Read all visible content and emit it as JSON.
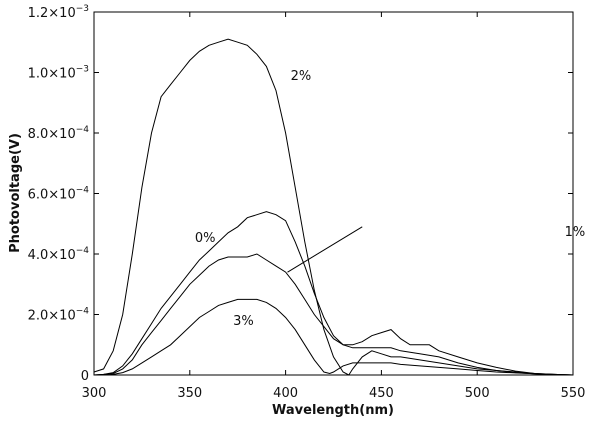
{
  "chart_data": {
    "type": "line",
    "title": "",
    "xlabel": "Wavelength(nm)",
    "ylabel": "Photovoltage(V)",
    "xlim": [
      300,
      550
    ],
    "ylim": [
      0,
      0.0012
    ],
    "grid": false,
    "legend": "none",
    "x_ticks": [
      300,
      350,
      400,
      450,
      500,
      550
    ],
    "x_tick_labels": [
      "300",
      "350",
      "400",
      "450",
      "500",
      "550"
    ],
    "y_ticks": [
      0,
      0.0002,
      0.0004,
      0.0006,
      0.0008,
      0.001,
      0.0012
    ],
    "y_tick_labels": [
      {
        "mant": "0",
        "exp": ""
      },
      {
        "mant": "2.0×10",
        "exp": "−4"
      },
      {
        "mant": "4.0×10",
        "exp": "−4"
      },
      {
        "mant": "6.0×10",
        "exp": "−4"
      },
      {
        "mant": "8.0×10",
        "exp": "−4"
      },
      {
        "mant": "1.0×10",
        "exp": "−3"
      },
      {
        "mant": "1.2×10",
        "exp": "−3"
      }
    ],
    "series": [
      {
        "name": "2%",
        "points": [
          [
            300,
            1e-05
          ],
          [
            305,
            2e-05
          ],
          [
            310,
            8e-05
          ],
          [
            315,
            0.0002
          ],
          [
            320,
            0.0004
          ],
          [
            325,
            0.00062
          ],
          [
            330,
            0.0008
          ],
          [
            335,
            0.00092
          ],
          [
            340,
            0.00096
          ],
          [
            345,
            0.001
          ],
          [
            350,
            0.00104
          ],
          [
            355,
            0.00107
          ],
          [
            360,
            0.00109
          ],
          [
            365,
            0.0011
          ],
          [
            370,
            0.00111
          ],
          [
            375,
            0.0011
          ],
          [
            380,
            0.00109
          ],
          [
            385,
            0.00106
          ],
          [
            390,
            0.00102
          ],
          [
            395,
            0.00094
          ],
          [
            400,
            0.0008
          ],
          [
            405,
            0.00062
          ],
          [
            410,
            0.00044
          ],
          [
            415,
            0.00028
          ],
          [
            420,
            0.00015
          ],
          [
            425,
            6e-05
          ],
          [
            430,
            1e-05
          ],
          [
            433,
            0.0
          ],
          [
            435,
            2e-05
          ],
          [
            440,
            6e-05
          ],
          [
            445,
            8e-05
          ],
          [
            450,
            7e-05
          ],
          [
            455,
            6e-05
          ],
          [
            460,
            6e-05
          ],
          [
            470,
            5e-05
          ],
          [
            480,
            4e-05
          ],
          [
            490,
            3e-05
          ],
          [
            500,
            2e-05
          ],
          [
            510,
            1.5e-05
          ],
          [
            520,
            1e-05
          ],
          [
            530,
            5e-06
          ],
          [
            540,
            2e-06
          ],
          [
            550,
            0.0
          ]
        ]
      },
      {
        "name": "0%",
        "points": [
          [
            300,
            0.0
          ],
          [
            305,
            2e-06
          ],
          [
            310,
            8e-06
          ],
          [
            315,
            3e-05
          ],
          [
            320,
            7e-05
          ],
          [
            325,
            0.00012
          ],
          [
            330,
            0.00017
          ],
          [
            335,
            0.00022
          ],
          [
            340,
            0.00026
          ],
          [
            345,
            0.0003
          ],
          [
            350,
            0.00034
          ],
          [
            355,
            0.00038
          ],
          [
            360,
            0.00041
          ],
          [
            365,
            0.00044
          ],
          [
            370,
            0.00047
          ],
          [
            375,
            0.00049
          ],
          [
            380,
            0.00052
          ],
          [
            385,
            0.00053
          ],
          [
            390,
            0.00054
          ],
          [
            395,
            0.00053
          ],
          [
            400,
            0.00051
          ],
          [
            405,
            0.00044
          ],
          [
            410,
            0.00036
          ],
          [
            415,
            0.00027
          ],
          [
            420,
            0.00019
          ],
          [
            425,
            0.00013
          ],
          [
            430,
            0.0001
          ],
          [
            435,
            9e-05
          ],
          [
            440,
            9e-05
          ],
          [
            445,
            9e-05
          ],
          [
            450,
            9e-05
          ],
          [
            455,
            9e-05
          ],
          [
            460,
            8e-05
          ],
          [
            470,
            7e-05
          ],
          [
            480,
            6e-05
          ],
          [
            490,
            4e-05
          ],
          [
            500,
            2.5e-05
          ],
          [
            510,
            1.5e-05
          ],
          [
            520,
            8e-06
          ],
          [
            530,
            4e-06
          ],
          [
            540,
            1e-06
          ],
          [
            550,
            0.0
          ]
        ]
      },
      {
        "name": "1%",
        "points": [
          [
            300,
            0.0
          ],
          [
            305,
            2e-06
          ],
          [
            310,
            5e-06
          ],
          [
            315,
            2e-05
          ],
          [
            320,
            5e-05
          ],
          [
            325,
            0.0001
          ],
          [
            330,
            0.00014
          ],
          [
            335,
            0.00018
          ],
          [
            340,
            0.00022
          ],
          [
            345,
            0.00026
          ],
          [
            350,
            0.0003
          ],
          [
            355,
            0.00033
          ],
          [
            360,
            0.00036
          ],
          [
            365,
            0.00038
          ],
          [
            370,
            0.00039
          ],
          [
            375,
            0.00039
          ],
          [
            380,
            0.00039
          ],
          [
            385,
            0.0004
          ],
          [
            390,
            0.00038
          ],
          [
            395,
            0.00036
          ],
          [
            400,
            0.00034
          ],
          [
            405,
            0.0003
          ],
          [
            410,
            0.00025
          ],
          [
            415,
            0.0002
          ],
          [
            420,
            0.00016
          ],
          [
            425,
            0.00012
          ],
          [
            430,
            0.0001
          ],
          [
            435,
            0.0001
          ],
          [
            440,
            0.00011
          ],
          [
            445,
            0.00013
          ],
          [
            450,
            0.00014
          ],
          [
            455,
            0.00015
          ],
          [
            460,
            0.00012
          ],
          [
            465,
            0.0001
          ],
          [
            470,
            0.0001
          ],
          [
            475,
            0.0001
          ],
          [
            480,
            8e-05
          ],
          [
            490,
            6e-05
          ],
          [
            500,
            4e-05
          ],
          [
            510,
            2.5e-05
          ],
          [
            520,
            1.3e-05
          ],
          [
            530,
            5e-06
          ],
          [
            540,
            2e-06
          ],
          [
            550,
            0.0
          ]
        ]
      },
      {
        "name": "3%",
        "points": [
          [
            300,
            0.0
          ],
          [
            305,
            0.0
          ],
          [
            310,
            2e-06
          ],
          [
            315,
            8e-06
          ],
          [
            320,
            2e-05
          ],
          [
            325,
            4e-05
          ],
          [
            330,
            6e-05
          ],
          [
            335,
            8e-05
          ],
          [
            340,
            0.0001
          ],
          [
            345,
            0.00013
          ],
          [
            350,
            0.00016
          ],
          [
            355,
            0.00019
          ],
          [
            360,
            0.00021
          ],
          [
            365,
            0.00023
          ],
          [
            370,
            0.00024
          ],
          [
            375,
            0.00025
          ],
          [
            380,
            0.00025
          ],
          [
            385,
            0.00025
          ],
          [
            390,
            0.00024
          ],
          [
            395,
            0.00022
          ],
          [
            400,
            0.00019
          ],
          [
            405,
            0.00015
          ],
          [
            410,
            0.0001
          ],
          [
            415,
            5e-05
          ],
          [
            420,
            1e-05
          ],
          [
            423,
            5e-06
          ],
          [
            425,
            1e-05
          ],
          [
            430,
            3e-05
          ],
          [
            435,
            4e-05
          ],
          [
            440,
            4e-05
          ],
          [
            445,
            4e-05
          ],
          [
            450,
            4e-05
          ],
          [
            455,
            4e-05
          ],
          [
            460,
            3.5e-05
          ],
          [
            470,
            3e-05
          ],
          [
            480,
            2.5e-05
          ],
          [
            490,
            2e-05
          ],
          [
            500,
            1.5e-05
          ],
          [
            510,
            1e-05
          ],
          [
            520,
            7e-06
          ],
          [
            530,
            4e-06
          ],
          [
            540,
            2e-06
          ],
          [
            550,
            0.0
          ]
        ]
      }
    ],
    "annotations": [
      {
        "text": "2%",
        "x": 408,
        "y": 0.000975
      },
      {
        "text": "0%",
        "x": 358,
        "y": 0.00044
      },
      {
        "text": "1%",
        "x": 551,
        "y": 0.00046
      },
      {
        "text": "3%",
        "x": 378,
        "y": 0.000165
      }
    ],
    "leader_line": {
      "series": "1%",
      "from": [
        401,
        0.00034
      ],
      "to": [
        440,
        0.00049
      ]
    }
  }
}
